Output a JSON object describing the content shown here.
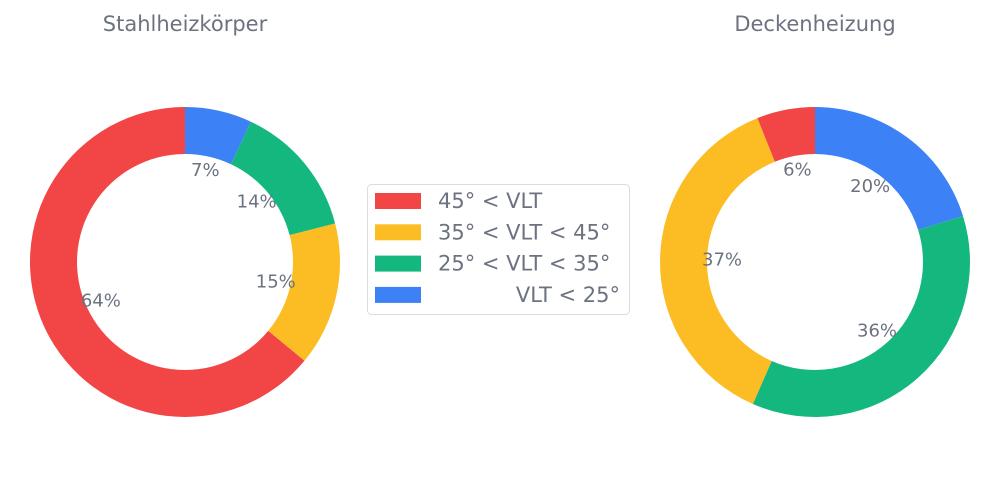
{
  "chart_data": [
    {
      "type": "pie",
      "donut": true,
      "title": "Stahlheizkörper",
      "categories": [
        "45° < VLT",
        "35° < VLT < 45°",
        "25° < VLT < 35°",
        "VLT < 25°"
      ],
      "values": [
        64,
        15,
        14,
        7
      ],
      "labels": [
        "64%",
        "15%",
        "14%",
        "7%"
      ]
    },
    {
      "type": "pie",
      "donut": true,
      "title": "Deckenheizung",
      "categories": [
        "45° < VLT",
        "35° < VLT < 45°",
        "25° < VLT < 35°",
        "VLT < 25°"
      ],
      "values": [
        6,
        37,
        36,
        20
      ],
      "labels": [
        "6%",
        "37%",
        "36%",
        "20%"
      ]
    }
  ],
  "legend": {
    "placement": "center",
    "entries": [
      "45° < VLT",
      "35° < VLT < 45°",
      "25° < VLT < 35°",
      "VLT < 25°"
    ]
  },
  "colors": [
    "#f24545",
    "#fbbd23",
    "#14b87e",
    "#3c82f6"
  ]
}
